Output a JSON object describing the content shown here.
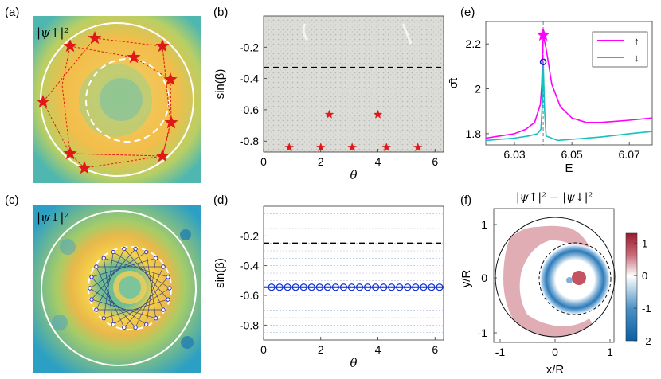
{
  "figure": {
    "panel_labels": {
      "a": "(a)",
      "b": "(b)",
      "c": "(c)",
      "d": "(d)",
      "e": "(e)",
      "f": "(f)"
    },
    "panel_a": {
      "label": "|ψ↑|²"
    },
    "panel_c": {
      "label": "|ψ↓|²"
    },
    "panel_f": {
      "title": "|ψ↑|² − |ψ↓|²"
    }
  },
  "chart_data": [
    {
      "id": "b",
      "type": "scatter",
      "xlabel": "θ",
      "ylabel": "sin(β)",
      "xlim": [
        0,
        6.3
      ],
      "ylim": [
        -0.87,
        0
      ],
      "xticks": [
        "0",
        "2",
        "4",
        "6"
      ],
      "yticks": [
        "-0.2",
        "-0.4",
        "-0.6",
        "-0.8"
      ],
      "dashed_line_y": -0.33,
      "background": "dense gray phase-space points",
      "series": [
        {
          "marker": "red-star",
          "points": [
            [
              0.9,
              -0.84
            ],
            [
              2.0,
              -0.84
            ],
            [
              2.3,
              -0.63
            ],
            [
              3.1,
              -0.84
            ],
            [
              4.0,
              -0.63
            ],
            [
              4.3,
              -0.84
            ],
            [
              5.4,
              -0.84
            ]
          ]
        }
      ]
    },
    {
      "id": "d",
      "type": "scatter",
      "xlabel": "θ",
      "ylabel": "sin(β)",
      "xlim": [
        0,
        6.3
      ],
      "ylim": [
        -0.9,
        0
      ],
      "xticks": [
        "0",
        "2",
        "4",
        "6"
      ],
      "yticks": [
        "-0.2",
        "-0.4",
        "-0.6",
        "-0.8"
      ],
      "dashed_line_y": -0.25,
      "orbit_line_y": -0.545,
      "series": [
        {
          "marker": "blue-circle",
          "points": [
            [
              0.28,
              -0.545
            ],
            [
              0.56,
              -0.545
            ],
            [
              0.84,
              -0.545
            ],
            [
              1.12,
              -0.545
            ],
            [
              1.4,
              -0.545
            ],
            [
              1.68,
              -0.545
            ],
            [
              1.96,
              -0.545
            ],
            [
              2.24,
              -0.545
            ],
            [
              2.52,
              -0.545
            ],
            [
              2.8,
              -0.545
            ],
            [
              3.08,
              -0.545
            ],
            [
              3.36,
              -0.545
            ],
            [
              3.64,
              -0.545
            ],
            [
              3.92,
              -0.545
            ],
            [
              4.2,
              -0.545
            ],
            [
              4.48,
              -0.545
            ],
            [
              4.76,
              -0.545
            ],
            [
              5.04,
              -0.545
            ],
            [
              5.32,
              -0.545
            ],
            [
              5.6,
              -0.545
            ],
            [
              5.88,
              -0.545
            ],
            [
              6.16,
              -0.545
            ]
          ]
        }
      ]
    },
    {
      "id": "e",
      "type": "line",
      "xlabel": "E",
      "ylabel": "σ̄t",
      "xlim": [
        6.02,
        6.078
      ],
      "ylim": [
        1.75,
        2.3
      ],
      "xticks": [
        "6.03",
        "6.05",
        "6.07"
      ],
      "yticks": [
        "1.8",
        "2",
        "2.2"
      ],
      "dashed_line_x": 6.04,
      "legend": "top-right",
      "series": [
        {
          "name": "↑",
          "color": "#ff00ff",
          "x": [
            6.02,
            6.025,
            6.03,
            6.034,
            6.037,
            6.039,
            6.0395,
            6.04,
            6.041,
            6.043,
            6.046,
            6.05,
            6.055,
            6.06,
            6.065,
            6.07,
            6.078
          ],
          "y": [
            1.78,
            1.79,
            1.8,
            1.82,
            1.85,
            1.93,
            2.02,
            2.24,
            2.18,
            2.02,
            1.92,
            1.87,
            1.85,
            1.85,
            1.855,
            1.86,
            1.87
          ]
        },
        {
          "name": "↓",
          "color": "#17c0c0",
          "x": [
            6.02,
            6.03,
            6.035,
            6.038,
            6.0392,
            6.0398,
            6.04,
            6.0405,
            6.041,
            6.045,
            6.05,
            6.06,
            6.07,
            6.078
          ],
          "y": [
            1.77,
            1.78,
            1.79,
            1.8,
            1.82,
            1.95,
            2.12,
            1.9,
            1.79,
            1.77,
            1.775,
            1.785,
            1.8,
            1.81
          ]
        }
      ],
      "markers": [
        {
          "type": "star",
          "color": "#ff00ff",
          "x": 6.04,
          "y": 2.24
        },
        {
          "type": "circle",
          "color": "#1010c0",
          "x": 6.04,
          "y": 2.12
        }
      ]
    },
    {
      "id": "f",
      "type": "heatmap",
      "xlabel": "x/R",
      "ylabel": "y/R",
      "xlim": [
        -1.1,
        1.1
      ],
      "ylim": [
        -1.1,
        1.1
      ],
      "xticks": [
        "-1",
        "0",
        "1"
      ],
      "yticks": [
        "1",
        "0",
        "-1"
      ],
      "colorbar_ticks": [
        "1",
        "0",
        "-1",
        "-2"
      ],
      "colorbar_range": [
        -2,
        1.3
      ],
      "colormap": [
        "#0a5fa5",
        "#4a90c4",
        "#ffffff",
        "#c96a78",
        "#9b1b30"
      ]
    }
  ]
}
